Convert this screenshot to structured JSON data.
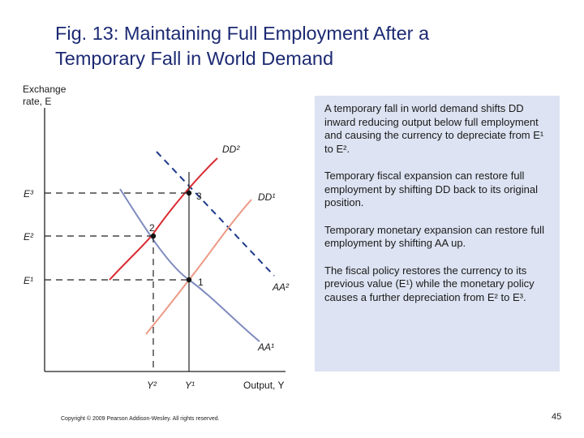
{
  "slide": {
    "title_line1": "Fig. 13: Maintaining Full Employment After a",
    "title_line2": "Temporary Fall in World Demand",
    "copyright": "Copyright © 2009 Pearson Addison-Wesley. All rights reserved.",
    "page_number": "45"
  },
  "diagram": {
    "y_axis_label_line1": "Exchange",
    "y_axis_label_line2": "rate, E",
    "x_axis_label": "Output, Y",
    "y_ticks": {
      "e3": "E³",
      "e2": "E²",
      "e1": "E¹"
    },
    "x_ticks": {
      "y2": "Y²",
      "y1": "Y¹"
    },
    "curves": {
      "dd2": "DD²",
      "dd1": "DD¹",
      "aa2": "AA²",
      "aa1": "AA¹"
    },
    "points": {
      "p1": "1",
      "p2": "2",
      "p3": "3"
    },
    "colors": {
      "dd2": "#d92b32",
      "dd1": "#ec9a85",
      "aa1": "#7f8bc0",
      "aa2": "#1e3a8a",
      "guide": "#222222"
    }
  },
  "explanation": {
    "para1": "A temporary fall in world demand shifts DD inward reducing output below full employment and causing the currency to depreciate from E¹ to E².",
    "para2": "Temporary fiscal expansion can restore full employment by shifting DD back to its original position.",
    "para3": "Temporary monetary expansion can restore full employment by shifting AA up.",
    "para4": "The fiscal policy restores the currency to its previous value (E¹) while the monetary policy causes a further depreciation from E² to E³."
  }
}
